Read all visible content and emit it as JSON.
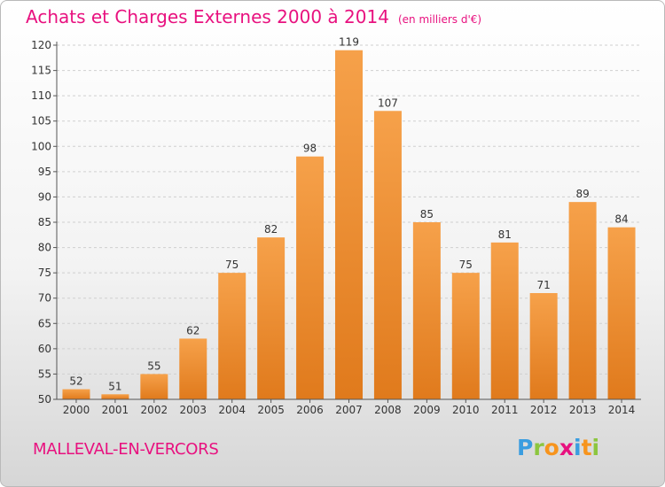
{
  "title": "Achats et Charges Externes 2000 à 2014",
  "unit_label": "(en milliers d'€)",
  "commune": "MALLEVAL-EN-VERCORS",
  "logo": {
    "letters": [
      "P",
      "r",
      "o",
      "x",
      "i",
      "t",
      "i"
    ],
    "colors": [
      "#3a9de0",
      "#8cc63f",
      "#f7941d",
      "#e8117f",
      "#3a9de0",
      "#f7941d",
      "#8cc63f"
    ]
  },
  "colors": {
    "bar_top": "#f6a14a",
    "bar_bottom": "#e07a1c",
    "title": "#e8117f",
    "grid": "#d0d0d0",
    "axis": "#555555"
  },
  "chart_data": {
    "type": "bar",
    "title": "Achats et Charges Externes 2000 à 2014",
    "categories": [
      "2000",
      "2001",
      "2002",
      "2003",
      "2004",
      "2005",
      "2006",
      "2007",
      "2008",
      "2009",
      "2010",
      "2011",
      "2012",
      "2013",
      "2014"
    ],
    "values": [
      52,
      51,
      55,
      62,
      75,
      82,
      98,
      119,
      107,
      85,
      75,
      81,
      71,
      89,
      84
    ],
    "ylim": [
      50,
      120
    ],
    "yticks": [
      50,
      55,
      60,
      65,
      70,
      75,
      80,
      85,
      90,
      95,
      100,
      105,
      110,
      115,
      120
    ],
    "grid": true,
    "xlabel": "",
    "ylabel": ""
  }
}
